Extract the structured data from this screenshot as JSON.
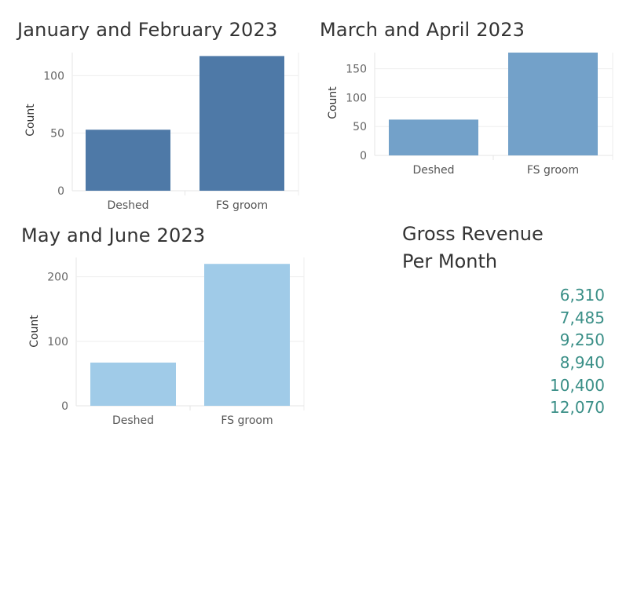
{
  "chart_data": [
    {
      "type": "bar",
      "title": "January and February 2023",
      "ylabel": "Count",
      "categories": [
        "Deshed",
        "FS groom"
      ],
      "values": [
        53,
        117
      ],
      "ylim": [
        0,
        120
      ],
      "yticks": [
        0,
        50,
        100
      ],
      "color": "#4e79a7",
      "grid": true
    },
    {
      "type": "bar",
      "title": "March and April 2023",
      "ylabel": "Count",
      "categories": [
        "Deshed",
        "FS groom"
      ],
      "values": [
        62,
        178
      ],
      "ylim": [
        0,
        178
      ],
      "yticks": [
        0,
        50,
        100,
        150
      ],
      "color": "#73a1c9",
      "grid": true
    },
    {
      "type": "bar",
      "title": "May and June 2023",
      "ylabel": "Count",
      "categories": [
        "Deshed",
        "FS groom"
      ],
      "values": [
        67,
        220
      ],
      "ylim": [
        0,
        230
      ],
      "yticks": [
        0,
        100,
        200
      ],
      "color": "#a0cbe8",
      "grid": true
    }
  ],
  "revenue": {
    "title_line1": "Gross Revenue",
    "title_line2": "Per Month",
    "values": [
      "6,310",
      "7,485",
      "9,250",
      "8,940",
      "10,400",
      "12,070"
    ],
    "color": "#3a8f87"
  }
}
